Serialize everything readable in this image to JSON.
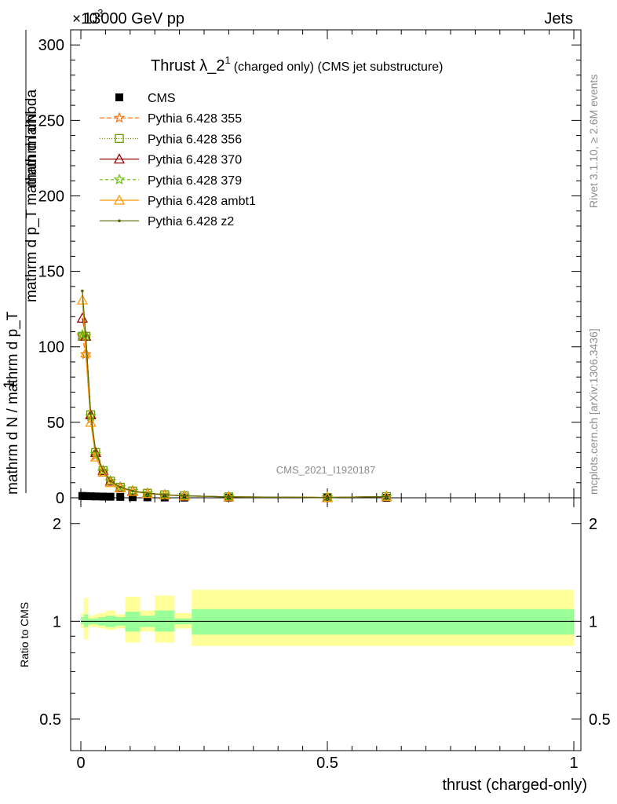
{
  "header": {
    "energy_label": "13000 GeV pp",
    "process_label": "Jets",
    "exponent_label": "×10",
    "exponent_power": "3"
  },
  "side_labels": {
    "rivet": "Rivet 3.1.10, ≥ 2.6M events",
    "mcplots": "mcplots.cern.ch [arXiv:1306.3436]"
  },
  "watermark": "CMS_2021_I1920187",
  "colors": {
    "CMS": "#000000",
    "p355": "#ff6600",
    "p356": "#669900",
    "p370": "#990000",
    "p379": "#66bb00",
    "ambt1": "#ff9900",
    "z2": "#556600",
    "band_inner": "#99ff99",
    "band_outer": "#ffff99"
  },
  "chart_data": [
    {
      "type": "line",
      "title": "Thrust λ_2¹ (charged only) (CMS jet substructure)",
      "title_main": "Thrust λ_2",
      "title_sup": "1",
      "title_rest": "(charged only) (CMS jet substructure)",
      "ylabel_numerator": "mathrm dN",
      "ylabel_denominator_1": "mathrm d p_T mathrm d lambda",
      "ylabel_denominator_2": "mathrm d N / mathrm d p_T",
      "ylabel_lead": "1",
      "ylim": [
        0,
        310
      ],
      "xlim": [
        -0.02,
        1.0
      ],
      "yticks": [
        0,
        50,
        100,
        150,
        200,
        250,
        300
      ],
      "legend": "top-left",
      "x": [
        0.003,
        0.01,
        0.02,
        0.03,
        0.045,
        0.06,
        0.08,
        0.105,
        0.135,
        0.17,
        0.21,
        0.3,
        0.5,
        0.62
      ],
      "series": [
        {
          "name": "CMS",
          "marker": "square",
          "dash": "none",
          "values": [
            1.2,
            1.1,
            1.0,
            0.9,
            0.8,
            0.7,
            0.6,
            0.4,
            0.3,
            0.2,
            0.15,
            0.05,
            0.02,
            0.01
          ]
        },
        {
          "name": "Pythia 6.428 355",
          "marker": "star",
          "dash": "6,3",
          "values": [
            107,
            95,
            52,
            28,
            17,
            11,
            7,
            4.5,
            3,
            2,
            1.3,
            0.6,
            0.2,
            0.8
          ]
        },
        {
          "name": "Pythia 6.428 356",
          "marker": "opensquare",
          "dash": "1,2",
          "values": [
            107,
            107,
            55,
            30,
            18,
            11,
            7,
            4.5,
            3,
            2,
            1.3,
            0.6,
            0.2,
            0.8
          ]
        },
        {
          "name": "Pythia 6.428 370",
          "marker": "opentriangle",
          "dash": "none",
          "values": [
            119,
            107,
            55,
            30,
            18,
            11,
            7,
            4.5,
            3,
            2,
            1.3,
            0.6,
            0.2,
            0.8
          ]
        },
        {
          "name": "Pythia 6.428 379",
          "marker": "star",
          "dash": "4,3",
          "values": [
            108,
            107,
            54,
            29,
            18,
            11,
            7,
            4.5,
            3,
            2,
            1.3,
            0.6,
            0.2,
            0.8
          ]
        },
        {
          "name": "Pythia 6.428 ambt1",
          "marker": "opentriangle",
          "dash": "none",
          "values": [
            131,
            96,
            50,
            27,
            17,
            10,
            6.5,
            4.2,
            2.8,
            1.9,
            1.2,
            0.6,
            0.2,
            0.8
          ]
        },
        {
          "name": "Pythia 6.428 z2",
          "marker": "dot",
          "dash": "none",
          "values": [
            137,
            107,
            56,
            31,
            18,
            11,
            7,
            4.5,
            3,
            2,
            1.3,
            0.6,
            0.2,
            0.8
          ]
        }
      ]
    },
    {
      "type": "area",
      "ylabel": "Ratio to CMS",
      "xlabel": "thrust (charged-only)",
      "ylim": [
        0.4,
        2.4
      ],
      "scale": "log",
      "yticks": [
        0.5,
        1,
        2
      ],
      "xticks": [
        0,
        0.5,
        1
      ],
      "reference": 1.0,
      "bins": [
        {
          "x0": 0.0,
          "x1": 0.006,
          "inner": [
            0.98,
            1.03
          ],
          "outer": [
            0.95,
            1.06
          ]
        },
        {
          "x0": 0.006,
          "x1": 0.015,
          "inner": [
            0.96,
            1.05
          ],
          "outer": [
            0.88,
            1.18
          ]
        },
        {
          "x0": 0.015,
          "x1": 0.025,
          "inner": [
            0.98,
            1.02
          ],
          "outer": [
            0.96,
            1.04
          ]
        },
        {
          "x0": 0.025,
          "x1": 0.035,
          "inner": [
            0.98,
            1.02
          ],
          "outer": [
            0.96,
            1.05
          ]
        },
        {
          "x0": 0.035,
          "x1": 0.05,
          "inner": [
            0.97,
            1.03
          ],
          "outer": [
            0.95,
            1.06
          ]
        },
        {
          "x0": 0.05,
          "x1": 0.07,
          "inner": [
            0.96,
            1.04
          ],
          "outer": [
            0.94,
            1.08
          ]
        },
        {
          "x0": 0.07,
          "x1": 0.09,
          "inner": [
            0.97,
            1.03
          ],
          "outer": [
            0.95,
            1.05
          ]
        },
        {
          "x0": 0.09,
          "x1": 0.12,
          "inner": [
            0.93,
            1.07
          ],
          "outer": [
            0.86,
            1.19
          ]
        },
        {
          "x0": 0.12,
          "x1": 0.15,
          "inner": [
            0.96,
            1.04
          ],
          "outer": [
            0.93,
            1.08
          ]
        },
        {
          "x0": 0.15,
          "x1": 0.19,
          "inner": [
            0.93,
            1.08
          ],
          "outer": [
            0.86,
            1.2
          ]
        },
        {
          "x0": 0.19,
          "x1": 0.225,
          "inner": [
            0.98,
            1.02
          ],
          "outer": [
            0.95,
            1.06
          ]
        },
        {
          "x0": 0.225,
          "x1": 1.0,
          "inner": [
            0.91,
            1.09
          ],
          "outer": [
            0.84,
            1.25
          ]
        }
      ]
    }
  ]
}
